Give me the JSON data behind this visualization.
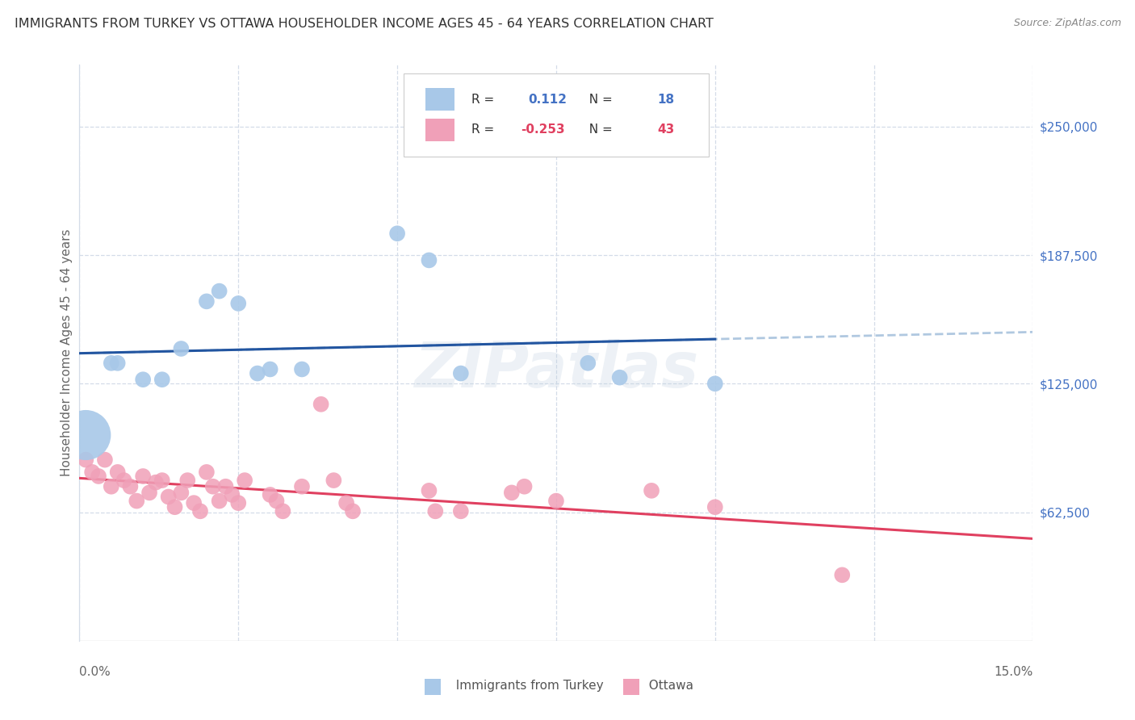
{
  "title": "IMMIGRANTS FROM TURKEY VS OTTAWA HOUSEHOLDER INCOME AGES 45 - 64 YEARS CORRELATION CHART",
  "source": "Source: ZipAtlas.com",
  "ylabel": "Householder Income Ages 45 - 64 years",
  "xlim": [
    0.0,
    0.15
  ],
  "ylim": [
    0,
    280000
  ],
  "blue_color": "#a8c8e8",
  "pink_color": "#f0a0b8",
  "blue_line_color": "#2255a0",
  "pink_line_color": "#e04060",
  "blue_dash_color": "#b0c8e0",
  "watermark": "ZIPatlas",
  "legend_label1": "Immigrants from Turkey",
  "legend_label2": "Ottawa",
  "legend_R1": "0.112",
  "legend_N1": "18",
  "legend_R2": "-0.253",
  "legend_N2": "43",
  "yticks": [
    62500,
    125000,
    187500,
    250000
  ],
  "ytick_labels": [
    "$62,500",
    "$125,000",
    "$187,500",
    "$250,000"
  ],
  "xticks": [
    0.0,
    0.025,
    0.05,
    0.075,
    0.1,
    0.125,
    0.15
  ],
  "grid_color": "#d4dce8",
  "blue_x": [
    0.001,
    0.005,
    0.006,
    0.01,
    0.013,
    0.016,
    0.02,
    0.022,
    0.025,
    0.028,
    0.03,
    0.035,
    0.05,
    0.055,
    0.06,
    0.08,
    0.085,
    0.1
  ],
  "blue_y": [
    100000,
    135000,
    135000,
    127000,
    127000,
    142000,
    165000,
    170000,
    164000,
    130000,
    132000,
    132000,
    198000,
    185000,
    130000,
    135000,
    128000,
    125000
  ],
  "blue_s": [
    2000,
    200,
    200,
    200,
    200,
    200,
    200,
    200,
    200,
    200,
    200,
    200,
    200,
    200,
    200,
    200,
    200,
    200
  ],
  "pink_x": [
    0.001,
    0.002,
    0.003,
    0.004,
    0.005,
    0.006,
    0.007,
    0.008,
    0.009,
    0.01,
    0.011,
    0.012,
    0.013,
    0.014,
    0.015,
    0.016,
    0.017,
    0.018,
    0.019,
    0.02,
    0.021,
    0.022,
    0.023,
    0.024,
    0.025,
    0.026,
    0.03,
    0.031,
    0.032,
    0.035,
    0.038,
    0.04,
    0.042,
    0.043,
    0.055,
    0.056,
    0.06,
    0.068,
    0.07,
    0.075,
    0.09,
    0.1,
    0.12
  ],
  "pink_y": [
    88000,
    82000,
    80000,
    88000,
    75000,
    82000,
    78000,
    75000,
    68000,
    80000,
    72000,
    77000,
    78000,
    70000,
    65000,
    72000,
    78000,
    67000,
    63000,
    82000,
    75000,
    68000,
    75000,
    71000,
    67000,
    78000,
    71000,
    68000,
    63000,
    75000,
    115000,
    78000,
    67000,
    63000,
    73000,
    63000,
    63000,
    72000,
    75000,
    68000,
    73000,
    65000,
    32000
  ],
  "pink_s": 200
}
